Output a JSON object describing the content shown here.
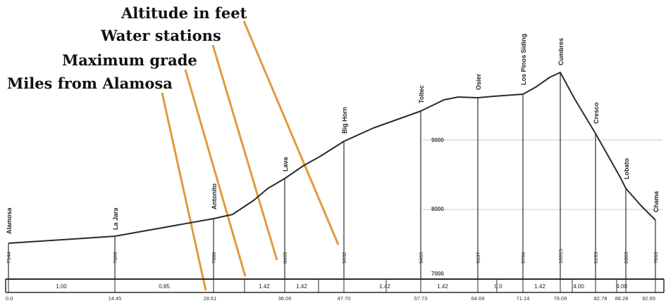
{
  "legend": {
    "altitude": "Altitude in feet",
    "water": "Water stations",
    "grade": "Maximum grade",
    "miles": "Miles from Alamosa"
  },
  "elevation_labels": [
    "9000",
    "8000",
    "7000"
  ],
  "stations": [
    {
      "name": "Alamosa",
      "alt": "7544",
      "mile": "0.0"
    },
    {
      "name": "La Jara",
      "alt": "7609",
      "mile": "14.45"
    },
    {
      "name": "Antonito",
      "alt": "7888",
      "mile": "28.61"
    },
    {
      "name": "Lava",
      "alt": "8469",
      "mile": "38.06"
    },
    {
      "name": "Big Horn",
      "alt": "9032",
      "mile": "47.70"
    },
    {
      "name": "Toltec",
      "alt": "9465",
      "mile": "57.73"
    },
    {
      "name": "Osier",
      "alt": "9637",
      "mile": "64.69"
    },
    {
      "name": "Los Pinos Siding",
      "alt": "9706",
      "mile": "71.14"
    },
    {
      "name": "Cumbres",
      "alt": "10015",
      "mile": "78.09"
    },
    {
      "name": "Cresco",
      "alt": "9193",
      "mile": "82.78"
    },
    {
      "name": "Lobato",
      "alt": "8303",
      "mile": "88.28"
    },
    {
      "name": "Chama",
      "alt": "7863",
      "mile": "92.65"
    }
  ],
  "grades": [
    "1.00",
    "0.85",
    "1.42",
    "1.42",
    "1.42",
    "1.42",
    "0.0",
    "1.42",
    "4.00",
    "4.00"
  ],
  "colors": {
    "profile": "#2b2b2b",
    "pointer": "#e29a3c",
    "grid": "#c8c8c8",
    "text": "#111111"
  }
}
